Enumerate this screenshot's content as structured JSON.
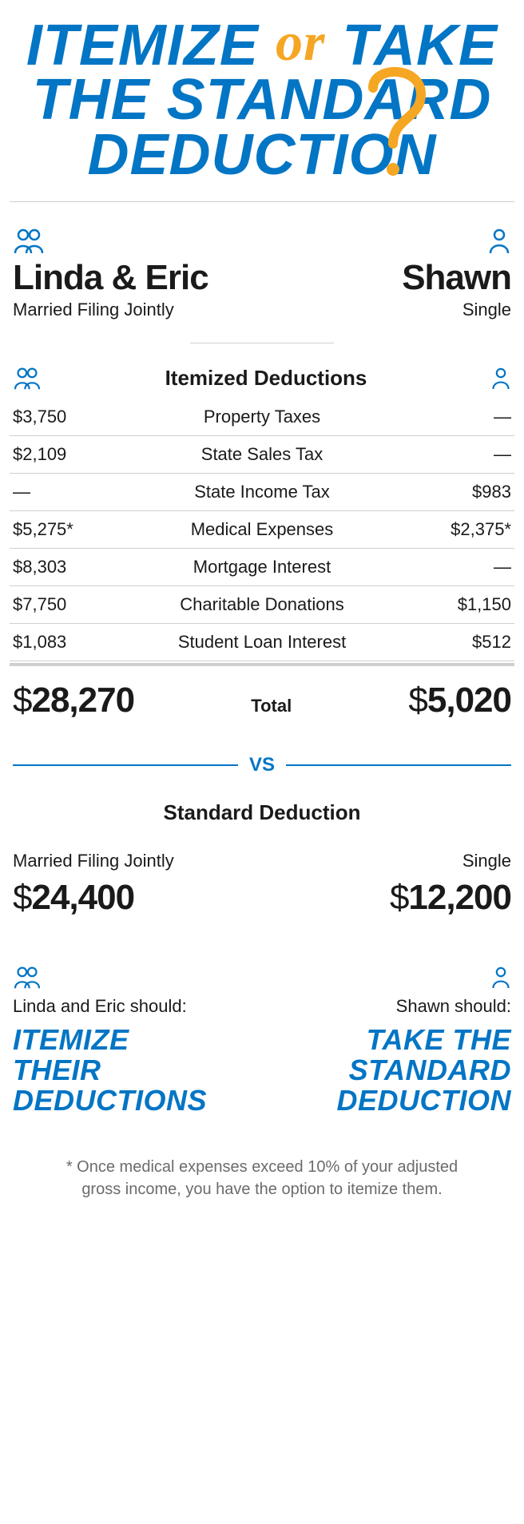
{
  "colors": {
    "brand_blue": "#0275c5",
    "accent_orange": "#f5a623",
    "text": "#1a1a1a",
    "muted": "#6b6b6b",
    "rule": "#cfcfcf",
    "bg": "#ffffff"
  },
  "title": {
    "part1": "ITEMIZE",
    "or": "or",
    "part2": "TAKE",
    "line2": "THE STANDARD",
    "line3": "DEDUCTION"
  },
  "personas": {
    "left": {
      "name": "Linda & Eric",
      "status": "Married Filing Jointly"
    },
    "right": {
      "name": "Shawn",
      "status": "Single"
    }
  },
  "itemized": {
    "heading": "Itemized Deductions",
    "rows": [
      {
        "left": "$3,750",
        "label": "Property Taxes",
        "right": "—"
      },
      {
        "left": "$2,109",
        "label": "State Sales Tax",
        "right": "—"
      },
      {
        "left": "—",
        "label": "State Income Tax",
        "right": "$983"
      },
      {
        "left": "$5,275*",
        "label": "Medical Expenses",
        "right": "$2,375*"
      },
      {
        "left": "$8,303",
        "label": "Mortgage Interest",
        "right": "—"
      },
      {
        "left": "$7,750",
        "label": "Charitable Donations",
        "right": "$1,150"
      },
      {
        "left": "$1,083",
        "label": "Student Loan Interest",
        "right": "$512"
      }
    ],
    "total": {
      "left": "28,270",
      "right": "5,020",
      "label": "Total"
    }
  },
  "vs": "VS",
  "standard": {
    "heading": "Standard Deduction",
    "left": {
      "status": "Married Filing Jointly",
      "amount": "24,400"
    },
    "right": {
      "status": "Single",
      "amount": "12,200"
    }
  },
  "recommendation": {
    "left": {
      "who": "Linda and Eric should:",
      "verdict_l1": "ITEMIZE",
      "verdict_l2": "THEIR",
      "verdict_l3": "DEDUCTIONS"
    },
    "right": {
      "who": "Shawn should:",
      "verdict_l1": "TAKE THE",
      "verdict_l2": "STANDARD",
      "verdict_l3": "DEDUCTION"
    }
  },
  "footnote": "* Once medical expenses exceed 10% of your adjusted gross income, you have the option to itemize them."
}
